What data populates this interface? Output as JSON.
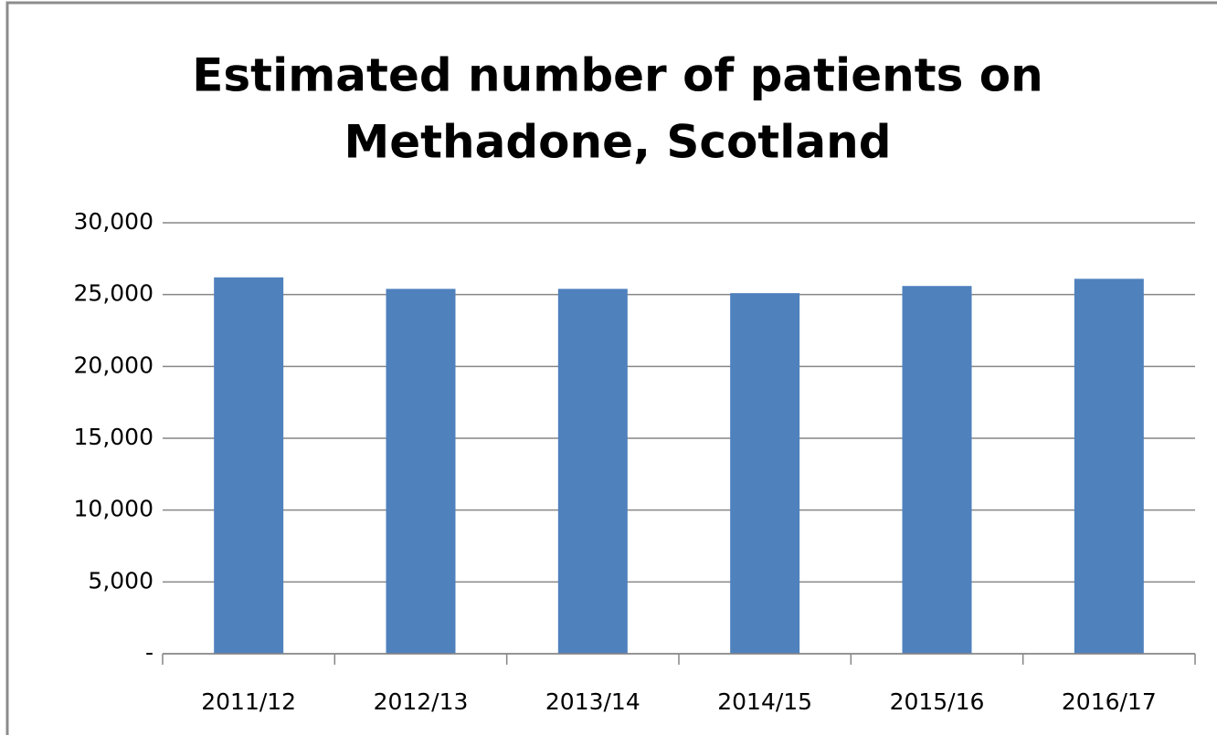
{
  "chart_data": {
    "type": "bar",
    "title": [
      "Estimated number of patients on",
      "Methadone, Scotland"
    ],
    "categories": [
      "2011/12",
      "2012/13",
      "2013/14",
      "2014/15",
      "2015/16",
      "2016/17"
    ],
    "values": [
      26200,
      25400,
      25400,
      25100,
      25600,
      26100
    ],
    "color": "#4f81bd",
    "ylim": [
      0,
      30000
    ],
    "yticks": [
      {
        "value": 0,
        "label": "-"
      },
      {
        "value": 5000,
        "label": "5,000"
      },
      {
        "value": 10000,
        "label": "10,000"
      },
      {
        "value": 15000,
        "label": "15,000"
      },
      {
        "value": 20000,
        "label": "20,000"
      },
      {
        "value": 25000,
        "label": "25,000"
      },
      {
        "value": 30000,
        "label": "30,000"
      }
    ],
    "grid": true
  }
}
